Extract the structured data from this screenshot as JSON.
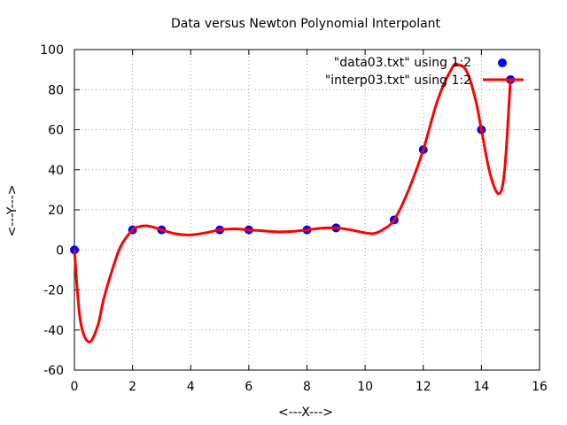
{
  "chart_data": {
    "type": "line",
    "title": "Data versus Newton Polynomial Interpolant",
    "xlabel": "<---X--->",
    "ylabel": "<---Y--->",
    "xlim": [
      0,
      16
    ],
    "ylim": [
      -60,
      100
    ],
    "x_ticks": [
      0,
      2,
      4,
      6,
      8,
      10,
      12,
      14,
      16
    ],
    "y_ticks": [
      -60,
      -40,
      -20,
      0,
      20,
      40,
      60,
      80,
      100
    ],
    "grid": true,
    "legend_position": "top-right",
    "series": [
      {
        "name": "\"data03.txt\" using 1:2",
        "kind": "points",
        "color": "#0000ff",
        "x": [
          0,
          2,
          3,
          5,
          6,
          8,
          9,
          11,
          12,
          14,
          15
        ],
        "y": [
          0,
          10,
          10,
          10,
          10,
          10,
          11,
          15,
          50,
          60,
          85
        ]
      },
      {
        "name": "\"interp03.txt\" using 1:2",
        "kind": "line",
        "color": "#ff0000",
        "x": [
          0,
          0.2,
          0.5,
          0.8,
          1.0,
          1.3,
          1.6,
          2.0,
          2.2,
          2.5,
          2.8,
          3.0,
          3.5,
          4.0,
          4.5,
          5.0,
          5.5,
          6.0,
          6.5,
          7.0,
          7.5,
          8.0,
          8.5,
          9.0,
          9.5,
          10.0,
          10.3,
          10.6,
          11.0,
          11.5,
          12.0,
          12.5,
          13.0,
          13.2,
          13.5,
          13.8,
          14.0,
          14.3,
          14.6,
          14.8,
          15.0
        ],
        "y": [
          0,
          -35,
          -46,
          -38,
          -25,
          -10,
          2,
          10,
          11.5,
          12,
          11,
          10,
          8,
          7.5,
          8.5,
          10,
          10.5,
          10,
          9.5,
          9,
          9.2,
          10,
          10.8,
          11,
          10,
          8.5,
          8.2,
          10,
          15,
          30,
          50,
          75,
          91,
          92.5,
          89,
          75,
          60,
          38,
          28,
          40,
          85
        ]
      }
    ]
  }
}
